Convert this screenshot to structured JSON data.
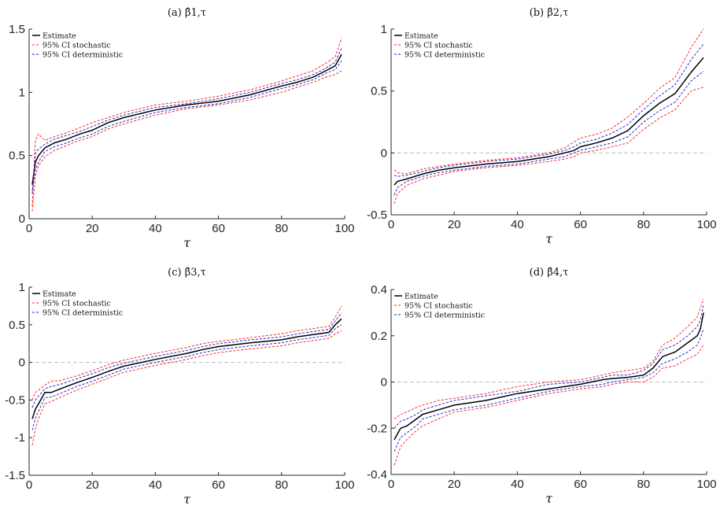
{
  "chart_data": [
    {
      "type": "line",
      "title": "(a) β̂1,τ",
      "xlabel": "τ",
      "xlim": [
        0,
        100
      ],
      "ylim": [
        0,
        1.5
      ],
      "xticks": [
        "0",
        "20",
        "40",
        "60",
        "80",
        "100"
      ],
      "yticks": [
        "0",
        "0.5",
        "1",
        "1.5"
      ],
      "zero_line": false,
      "legend": [
        "Estimate",
        "95% CI stochastic",
        "95% CI deterministic"
      ],
      "legend_position": "top-left",
      "x": [
        1,
        2,
        3,
        5,
        8,
        12,
        16,
        20,
        25,
        30,
        40,
        50,
        60,
        70,
        80,
        85,
        90,
        94,
        97,
        99
      ],
      "series": [
        {
          "name": "Estimate",
          "values": [
            0.27,
            0.45,
            0.5,
            0.56,
            0.6,
            0.63,
            0.67,
            0.7,
            0.76,
            0.8,
            0.86,
            0.9,
            0.93,
            0.98,
            1.05,
            1.08,
            1.12,
            1.17,
            1.21,
            1.3
          ]
        },
        {
          "name": "95% CI stochastic",
          "values": [
            0.1,
            0.62,
            0.67,
            0.62,
            0.65,
            0.68,
            0.72,
            0.76,
            0.8,
            0.84,
            0.9,
            0.93,
            0.97,
            1.02,
            1.09,
            1.13,
            1.17,
            1.23,
            1.28,
            1.43
          ]
        },
        {
          "name": "95% CI stochastic",
          "values": [
            0.06,
            0.34,
            0.42,
            0.49,
            0.54,
            0.58,
            0.62,
            0.65,
            0.71,
            0.75,
            0.82,
            0.87,
            0.9,
            0.94,
            1.0,
            1.04,
            1.08,
            1.12,
            1.14,
            1.17
          ]
        },
        {
          "name": "95% CI deterministic",
          "values": [
            0.2,
            0.52,
            0.55,
            0.59,
            0.63,
            0.66,
            0.69,
            0.73,
            0.78,
            0.82,
            0.88,
            0.91,
            0.95,
            1.0,
            1.07,
            1.1,
            1.14,
            1.19,
            1.24,
            1.35
          ]
        },
        {
          "name": "95% CI deterministic",
          "values": [
            0.22,
            0.39,
            0.45,
            0.53,
            0.57,
            0.6,
            0.64,
            0.67,
            0.73,
            0.77,
            0.84,
            0.88,
            0.91,
            0.96,
            1.03,
            1.06,
            1.1,
            1.15,
            1.18,
            1.25
          ]
        }
      ]
    },
    {
      "type": "line",
      "title": "(b) β̂2,τ",
      "xlabel": "τ",
      "xlim": [
        0,
        100
      ],
      "ylim": [
        -0.5,
        1
      ],
      "xticks": [
        "0",
        "20",
        "40",
        "60",
        "80",
        "100"
      ],
      "yticks": [
        "-0.5",
        "0",
        "0.5",
        "1"
      ],
      "zero_line": true,
      "legend": [
        "Estimate",
        "95% CI stochastic",
        "95% CI deterministic"
      ],
      "legend_position": "top-left",
      "x": [
        1,
        2,
        5,
        10,
        15,
        20,
        30,
        40,
        50,
        55,
        58,
        60,
        65,
        70,
        75,
        80,
        85,
        90,
        95,
        99
      ],
      "series": [
        {
          "name": "Estimate",
          "values": [
            -0.26,
            -0.23,
            -0.21,
            -0.17,
            -0.14,
            -0.12,
            -0.09,
            -0.07,
            -0.03,
            0.0,
            0.02,
            0.05,
            0.08,
            0.12,
            0.18,
            0.3,
            0.4,
            0.48,
            0.65,
            0.77
          ]
        },
        {
          "name": "95% CI stochastic",
          "values": [
            -0.14,
            -0.16,
            -0.17,
            -0.13,
            -0.11,
            -0.09,
            -0.06,
            -0.04,
            0.0,
            0.04,
            0.09,
            0.12,
            0.15,
            0.2,
            0.29,
            0.4,
            0.52,
            0.61,
            0.85,
            1.0
          ]
        },
        {
          "name": "95% CI stochastic",
          "values": [
            -0.41,
            -0.33,
            -0.26,
            -0.21,
            -0.18,
            -0.15,
            -0.12,
            -0.1,
            -0.07,
            -0.05,
            -0.03,
            0.0,
            0.02,
            0.05,
            0.08,
            0.19,
            0.28,
            0.35,
            0.5,
            0.53
          ]
        },
        {
          "name": "95% CI deterministic",
          "values": [
            -0.18,
            -0.19,
            -0.18,
            -0.15,
            -0.12,
            -0.1,
            -0.07,
            -0.05,
            -0.01,
            0.02,
            0.05,
            0.08,
            0.11,
            0.16,
            0.23,
            0.35,
            0.46,
            0.55,
            0.75,
            0.88
          ]
        },
        {
          "name": "95% CI deterministic",
          "values": [
            -0.34,
            -0.28,
            -0.23,
            -0.19,
            -0.16,
            -0.14,
            -0.11,
            -0.09,
            -0.05,
            -0.03,
            0.0,
            0.02,
            0.05,
            0.08,
            0.13,
            0.25,
            0.34,
            0.41,
            0.58,
            0.66
          ]
        }
      ]
    },
    {
      "type": "line",
      "title": "(c) β̂3,τ",
      "xlabel": "τ",
      "xlim": [
        0,
        100
      ],
      "ylim": [
        -1.5,
        1
      ],
      "xticks": [
        "0",
        "20",
        "40",
        "60",
        "80",
        "100"
      ],
      "yticks": [
        "-1.5",
        "-1",
        "-0.5",
        "0",
        "0.5",
        "1"
      ],
      "zero_line": true,
      "legend": [
        "Estimate",
        "95% CI stochastic",
        "95% CI deterministic"
      ],
      "legend_position": "top-left",
      "x": [
        1,
        2,
        3,
        5,
        7,
        10,
        15,
        20,
        25,
        30,
        40,
        50,
        55,
        60,
        70,
        80,
        85,
        90,
        95,
        97,
        99
      ],
      "series": [
        {
          "name": "Estimate",
          "values": [
            -0.75,
            -0.62,
            -0.55,
            -0.4,
            -0.4,
            -0.35,
            -0.27,
            -0.2,
            -0.12,
            -0.05,
            0.04,
            0.12,
            0.17,
            0.21,
            0.26,
            0.3,
            0.34,
            0.37,
            0.4,
            0.5,
            0.58
          ]
        },
        {
          "name": "95% CI stochastic",
          "values": [
            -0.5,
            -0.4,
            -0.37,
            -0.3,
            -0.25,
            -0.24,
            -0.18,
            -0.11,
            -0.03,
            0.03,
            0.12,
            0.2,
            0.25,
            0.28,
            0.33,
            0.38,
            0.42,
            0.45,
            0.48,
            0.6,
            0.75
          ]
        },
        {
          "name": "95% CI stochastic",
          "values": [
            -1.1,
            -0.88,
            -0.75,
            -0.55,
            -0.52,
            -0.46,
            -0.37,
            -0.29,
            -0.21,
            -0.13,
            -0.04,
            0.04,
            0.09,
            0.13,
            0.18,
            0.22,
            0.26,
            0.29,
            0.32,
            0.38,
            0.42
          ]
        },
        {
          "name": "95% CI deterministic",
          "values": [
            -0.6,
            -0.5,
            -0.45,
            -0.35,
            -0.32,
            -0.29,
            -0.22,
            -0.15,
            -0.07,
            -0.01,
            0.08,
            0.16,
            0.21,
            0.25,
            0.3,
            0.34,
            0.38,
            0.41,
            0.44,
            0.55,
            0.66
          ]
        },
        {
          "name": "95% CI deterministic",
          "values": [
            -0.9,
            -0.74,
            -0.65,
            -0.47,
            -0.46,
            -0.41,
            -0.32,
            -0.25,
            -0.17,
            -0.09,
            0.0,
            0.08,
            0.13,
            0.17,
            0.22,
            0.26,
            0.3,
            0.33,
            0.36,
            0.45,
            0.5
          ]
        }
      ]
    },
    {
      "type": "line",
      "title": "(d) β̂4,τ",
      "xlabel": "τ",
      "xlim": [
        0,
        100
      ],
      "ylim": [
        -0.4,
        0.4
      ],
      "xticks": [
        "0",
        "20",
        "40",
        "60",
        "80",
        "100"
      ],
      "yticks": [
        "-0.4",
        "-0.2",
        "0",
        "0.2",
        "0.4"
      ],
      "zero_line": true,
      "legend": [
        "Estimate",
        "95% CI stochastic",
        "95% CI deterministic"
      ],
      "legend_position": "top-left",
      "x": [
        1,
        3,
        5,
        8,
        10,
        15,
        20,
        30,
        40,
        50,
        60,
        67,
        70,
        75,
        80,
        83,
        86,
        90,
        94,
        97,
        98,
        99
      ],
      "series": [
        {
          "name": "Estimate",
          "values": [
            -0.25,
            -0.2,
            -0.19,
            -0.16,
            -0.14,
            -0.12,
            -0.1,
            -0.08,
            -0.05,
            -0.03,
            -0.01,
            0.01,
            0.015,
            0.02,
            0.03,
            0.06,
            0.11,
            0.13,
            0.17,
            0.2,
            0.23,
            0.3
          ]
        },
        {
          "name": "95% CI stochastic",
          "values": [
            -0.16,
            -0.14,
            -0.13,
            -0.11,
            -0.1,
            -0.08,
            -0.07,
            -0.05,
            -0.02,
            0.0,
            0.01,
            0.03,
            0.04,
            0.05,
            0.06,
            0.09,
            0.16,
            0.19,
            0.24,
            0.28,
            0.32,
            0.36
          ]
        },
        {
          "name": "95% CI stochastic",
          "values": [
            -0.36,
            -0.28,
            -0.25,
            -0.21,
            -0.19,
            -0.16,
            -0.13,
            -0.11,
            -0.08,
            -0.05,
            -0.03,
            -0.02,
            -0.01,
            0.0,
            0.0,
            0.02,
            0.06,
            0.07,
            0.1,
            0.12,
            0.14,
            0.16
          ]
        },
        {
          "name": "95% CI deterministic",
          "values": [
            -0.2,
            -0.17,
            -0.16,
            -0.14,
            -0.12,
            -0.1,
            -0.08,
            -0.06,
            -0.04,
            -0.01,
            0.0,
            0.02,
            0.03,
            0.03,
            0.05,
            0.08,
            0.14,
            0.16,
            0.2,
            0.24,
            0.27,
            0.33
          ]
        },
        {
          "name": "95% CI deterministic",
          "values": [
            -0.3,
            -0.24,
            -0.22,
            -0.19,
            -0.16,
            -0.14,
            -0.12,
            -0.1,
            -0.07,
            -0.04,
            -0.02,
            -0.01,
            0.0,
            0.01,
            0.02,
            0.04,
            0.08,
            0.1,
            0.13,
            0.16,
            0.19,
            0.23
          ]
        }
      ]
    }
  ],
  "colors": {
    "estimate": "#000000",
    "stochastic": "#ff2a2a",
    "deterministic": "#2a2acc",
    "zero_line": "#bdbdbd"
  }
}
